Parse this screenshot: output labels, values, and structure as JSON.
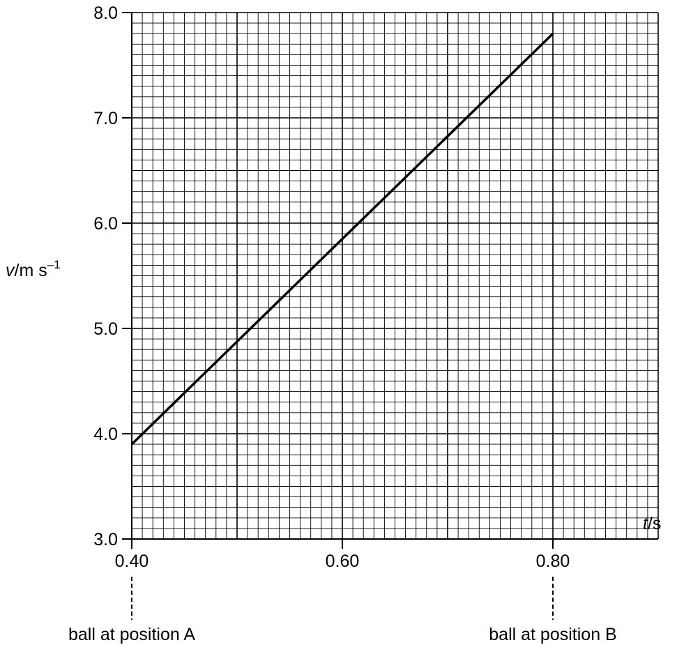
{
  "chart_data": {
    "type": "line",
    "title": "",
    "xlabel": {
      "var": "t",
      "sep": "/",
      "unit": "s"
    },
    "ylabel": {
      "var": "v",
      "sep": "/",
      "unit": "m s",
      "exp": "–1"
    },
    "xlim": [
      0.4,
      0.9
    ],
    "ylim": [
      3.0,
      8.0
    ],
    "x_ticks": [
      0.4,
      0.6,
      0.8
    ],
    "x_tick_labels": [
      "0.40",
      "0.60",
      "0.80"
    ],
    "y_ticks": [
      3.0,
      4.0,
      5.0,
      6.0,
      7.0,
      8.0
    ],
    "y_tick_labels": [
      "3.0",
      "4.0",
      "5.0",
      "6.0",
      "7.0",
      "8.0"
    ],
    "grid": {
      "major_x": 0.1,
      "major_y": 1.0,
      "minor_x": 0.01,
      "minor_y": 0.1
    },
    "series": [
      {
        "x": [
          0.4,
          0.8
        ],
        "y": [
          3.9,
          7.8
        ]
      }
    ],
    "annotations": [
      {
        "x": 0.4,
        "text": "ball at position A"
      },
      {
        "x": 0.8,
        "text": "ball at position B"
      }
    ]
  }
}
